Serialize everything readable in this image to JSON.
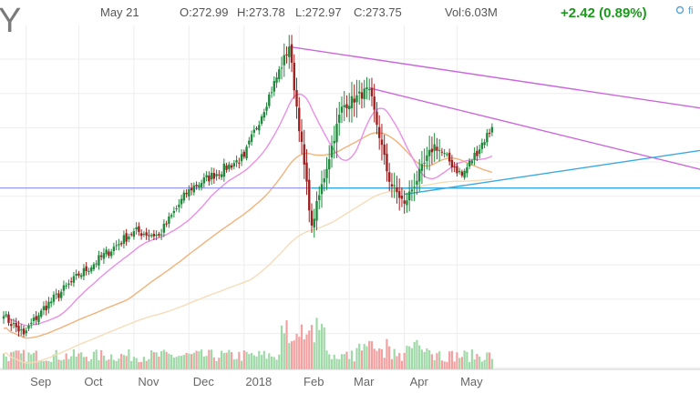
{
  "header": {
    "ticker_fragment": "Y",
    "date": "May 21",
    "open": "O:272.99",
    "high": "H:273.78",
    "low": "L:272.97",
    "close": "C:273.75",
    "volume": "Vol:6.03M",
    "change": "+2.42 (0.89%)",
    "toolbar_fragment": "fi"
  },
  "colors": {
    "up": "#1e8a3c",
    "down": "#a01e1e",
    "change": "#1a9a1a",
    "sma_fast": "#e98fe6",
    "sma_mid": "#f2b27a",
    "sma_slow": "#f6dcb8",
    "support": "#8d8df0",
    "trend_magenta": "#cc66dd",
    "trend_cyan": "#39a9e0",
    "vol_up": "#9fd9a8",
    "vol_down": "#f2a0a0"
  },
  "chart_data": {
    "type": "candlestick",
    "title": "",
    "xlabel": "",
    "ylabel": "",
    "ylim": [
      235,
      290
    ],
    "x_ticks": [
      "Sep",
      "Oct",
      "Nov",
      "Dec",
      "2018",
      "Feb",
      "Mar",
      "Apr",
      "May"
    ],
    "grid": true,
    "support_level": 264,
    "trendlines": [
      {
        "color": "magenta",
        "from": [
          "late Jan 2018",
          286.6
        ],
        "to": [
          "May 21 2018",
          276.8
        ]
      },
      {
        "color": "magenta",
        "from": [
          "Mar 13 2018",
          280.0
        ],
        "to": [
          "May 21 2018",
          267.0
        ]
      },
      {
        "color": "cyan",
        "from": [
          "Apr 2 2018",
          263.0
        ],
        "to": [
          "May 21 2018",
          270.0
        ]
      },
      {
        "color": "cyan",
        "from": [
          "Feb 8 2018",
          264.0
        ],
        "to": [
          "May 21 2018",
          264.0
        ]
      }
    ],
    "price_anchors": [
      {
        "date": "Aug 21 2017",
        "close": 243.5
      },
      {
        "date": "Aug 31 2017",
        "close": 240.6
      },
      {
        "date": "Sep 11 2017",
        "close": 244.4
      },
      {
        "date": "Oct 2 2017",
        "close": 250.0
      },
      {
        "date": "Nov 1 2017",
        "close": 257.1
      },
      {
        "date": "Nov 15 2017",
        "close": 256.4
      },
      {
        "date": "Dec 1 2017",
        "close": 263.8
      },
      {
        "date": "Jan 2 2018",
        "close": 269.0
      },
      {
        "date": "Jan 26 2018",
        "close": 286.6
      },
      {
        "date": "Feb 8 2018",
        "close": 258.0
      },
      {
        "date": "Feb 26 2018",
        "close": 277.0
      },
      {
        "date": "Mar 13 2018",
        "close": 279.8
      },
      {
        "date": "Mar 23 2018",
        "close": 265.0
      },
      {
        "date": "Apr 2 2018",
        "close": 261.5
      },
      {
        "date": "Apr 18 2018",
        "close": 271.0
      },
      {
        "date": "May 3 2018",
        "close": 266.0
      },
      {
        "date": "May 21 2018",
        "close": 273.75
      }
    ],
    "series": [
      {
        "name": "Price",
        "kind": "candles"
      },
      {
        "name": "",
        "kind": "sma",
        "color": "pink"
      },
      {
        "name": "",
        "kind": "sma",
        "color": "orange"
      },
      {
        "name": "",
        "kind": "sma",
        "color": "tan"
      },
      {
        "name": "Volume",
        "kind": "bars"
      }
    ]
  }
}
